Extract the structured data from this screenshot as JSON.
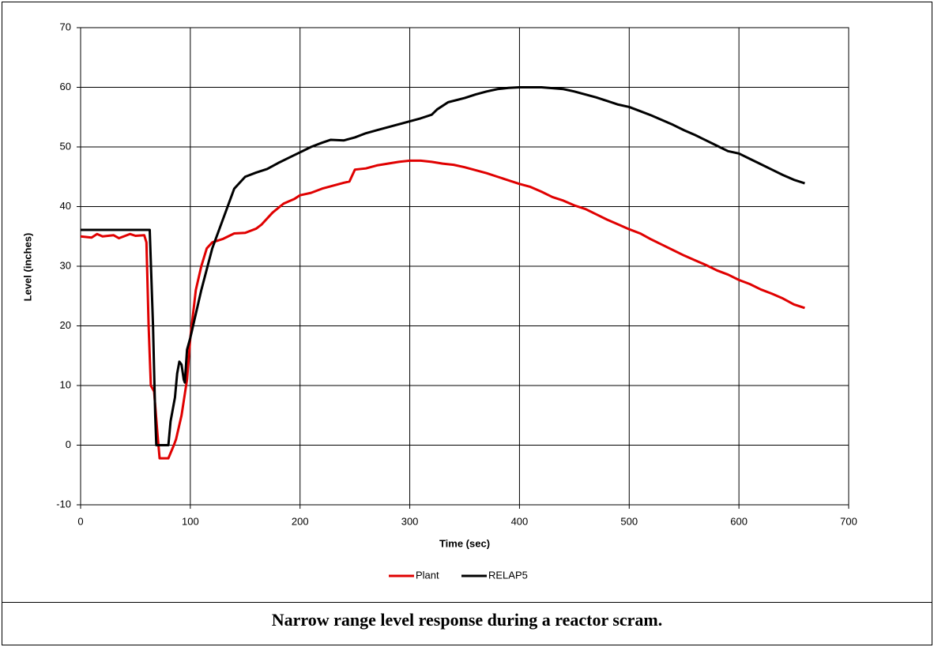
{
  "chart_data": {
    "type": "line",
    "caption": "Narrow range level response during a reactor scram.",
    "xlabel": "Time (sec)",
    "ylabel": "Level (inches)",
    "xlim": [
      0,
      700
    ],
    "xticks": [
      0,
      100,
      200,
      300,
      400,
      500,
      600,
      700
    ],
    "ylim": [
      -10,
      70
    ],
    "yticks": [
      -10,
      0,
      10,
      20,
      30,
      40,
      50,
      60,
      70
    ],
    "grid": true,
    "legend": "bottom",
    "series": [
      {
        "name": "Plant",
        "color": "#e00000",
        "x": [
          0,
          10,
          15,
          20,
          30,
          35,
          45,
          50,
          58,
          60,
          62,
          64,
          67,
          70,
          72,
          80,
          85,
          87,
          92,
          97,
          100,
          105,
          110,
          115,
          120,
          130,
          140,
          150,
          160,
          165,
          175,
          185,
          195,
          200,
          210,
          220,
          230,
          240,
          245,
          250,
          260,
          270,
          280,
          290,
          300,
          310,
          320,
          330,
          340,
          350,
          360,
          370,
          380,
          390,
          400,
          410,
          420,
          430,
          440,
          450,
          460,
          470,
          480,
          490,
          500,
          510,
          520,
          530,
          540,
          550,
          560,
          570,
          580,
          590,
          600,
          610,
          620,
          630,
          640,
          650,
          660
        ],
        "values": [
          35,
          34.8,
          35.4,
          35,
          35.2,
          34.7,
          35.4,
          35.1,
          35.2,
          34,
          20,
          10,
          9,
          2,
          -2.2,
          -2.2,
          0,
          1,
          5,
          11,
          18,
          26,
          30,
          33,
          34,
          34.6,
          35.5,
          35.6,
          36.3,
          37,
          39,
          40.5,
          41.3,
          41.9,
          42.3,
          43,
          43.5,
          44,
          44.2,
          46.2,
          46.4,
          46.9,
          47.2,
          47.5,
          47.7,
          47.7,
          47.5,
          47.2,
          47,
          46.6,
          46.1,
          45.6,
          45,
          44.4,
          43.8,
          43.3,
          42.5,
          41.6,
          41,
          40.2,
          39.6,
          38.7,
          37.8,
          37,
          36.2,
          35.5,
          34.5,
          33.6,
          32.7,
          31.8,
          31,
          30.2,
          29.3,
          28.6,
          27.7,
          27,
          26.1,
          25.4,
          24.6,
          23.6,
          23
        ]
      },
      {
        "name": "RELAP5",
        "color": "#000000",
        "x": [
          0,
          60,
          63,
          66,
          68,
          69,
          80,
          82,
          86,
          88,
          90,
          92,
          94,
          95,
          97,
          100,
          110,
          120,
          130,
          140,
          150,
          160,
          170,
          180,
          190,
          200,
          210,
          220,
          228,
          240,
          250,
          260,
          270,
          280,
          290,
          300,
          310,
          320,
          325,
          335,
          350,
          360,
          370,
          380,
          390,
          400,
          420,
          440,
          450,
          460,
          470,
          480,
          490,
          500,
          510,
          520,
          530,
          540,
          550,
          560,
          570,
          580,
          590,
          600,
          610,
          620,
          630,
          640,
          650,
          660
        ],
        "values": [
          36.1,
          36.1,
          36.1,
          20,
          5,
          0,
          0,
          4,
          8,
          12,
          14,
          13.5,
          11,
          10.5,
          16,
          18,
          26,
          33,
          38,
          43,
          45,
          45.7,
          46.3,
          47.3,
          48.2,
          49.1,
          50,
          50.7,
          51.2,
          51.1,
          51.6,
          52.3,
          52.8,
          53.3,
          53.8,
          54.3,
          54.8,
          55.4,
          56.3,
          57.5,
          58.2,
          58.8,
          59.3,
          59.7,
          59.9,
          60,
          60,
          59.7,
          59.3,
          58.8,
          58.3,
          57.7,
          57.1,
          56.7,
          56,
          55.3,
          54.5,
          53.7,
          52.8,
          52,
          51.1,
          50.2,
          49.3,
          48.9,
          48,
          47.1,
          46.2,
          45.3,
          44.5,
          43.9
        ]
      }
    ]
  }
}
